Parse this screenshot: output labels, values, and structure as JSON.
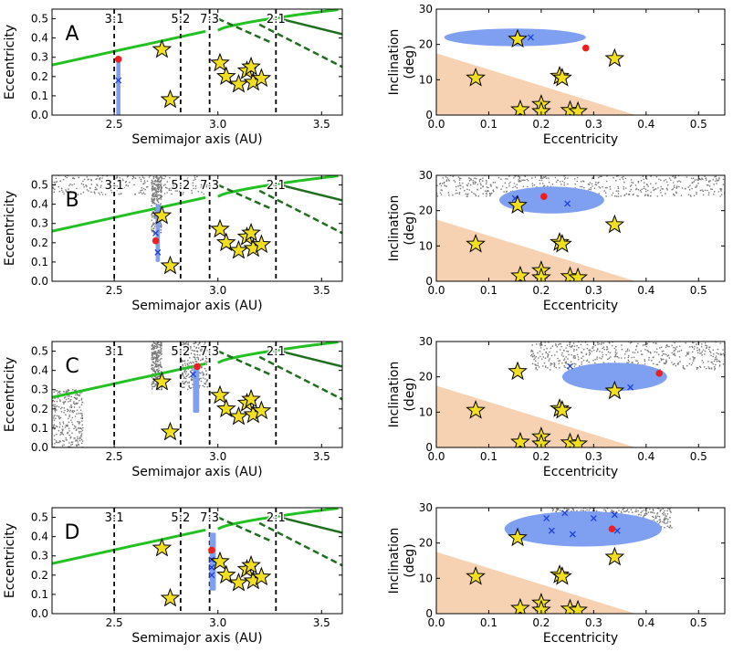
{
  "colors": {
    "green": "#22c020",
    "dark_green": "#1e6e1e",
    "blue_cloud": "#7f9ff0",
    "blue_x": "#1f3fe0",
    "red": "#ee1f1f",
    "gray": "#777777",
    "peach": "#f6d2b2",
    "star_fill": "#f2df1f",
    "star_edge": "#000000"
  },
  "chart_data": [
    {
      "type": "scatter",
      "panel": "A",
      "xlabel": "Semimajor axis (AU)",
      "ylabel": "Eccentricity",
      "xlim": [
        2.2,
        3.6
      ],
      "ylim": [
        0.0,
        0.55
      ],
      "xticks": [
        "2.5",
        "3.0",
        "3.5"
      ],
      "yticks": [
        "0.0",
        "0.1",
        "0.2",
        "0.3",
        "0.4",
        "0.5"
      ],
      "resonances": [
        {
          "label": "3:1",
          "a": 2.5
        },
        {
          "label": "5:2",
          "a": 2.82
        },
        {
          "label": "7:3",
          "a": 2.96
        },
        {
          "label": "2:1",
          "a": 3.28
        }
      ],
      "stars": [
        [
          2.73,
          0.34
        ],
        [
          2.77,
          0.08
        ],
        [
          3.01,
          0.27
        ],
        [
          3.04,
          0.2
        ],
        [
          3.1,
          0.16
        ],
        [
          3.14,
          0.23
        ],
        [
          3.16,
          0.25
        ],
        [
          3.17,
          0.17
        ],
        [
          3.21,
          0.19
        ]
      ],
      "blue_streak": {
        "a": [
          2.51,
          2.53
        ],
        "e": [
          0.0,
          0.29
        ]
      },
      "gray_clouds": [],
      "red_points": [
        [
          2.52,
          0.29
        ]
      ],
      "x_markers": [
        [
          2.52,
          0.18
        ]
      ]
    },
    {
      "type": "scatter",
      "panel": "",
      "xlabel": "Eccentricity",
      "ylabel": "Inclination (deg)",
      "xlim": [
        0.0,
        0.55
      ],
      "ylim": [
        0,
        30
      ],
      "xticks": [
        "0.0",
        "0.1",
        "0.2",
        "0.3",
        "0.4",
        "0.5"
      ],
      "yticks": [
        "0",
        "10",
        "20",
        "30"
      ],
      "stars": [
        [
          0.075,
          10.5
        ],
        [
          0.155,
          21.5
        ],
        [
          0.16,
          1.5
        ],
        [
          0.2,
          3.0
        ],
        [
          0.2,
          1.0
        ],
        [
          0.235,
          11.0
        ],
        [
          0.24,
          10.5
        ],
        [
          0.255,
          1.3
        ],
        [
          0.27,
          1.0
        ],
        [
          0.34,
          16.0
        ]
      ],
      "blue_cloud": {
        "cx": 0.15,
        "cy": 22.0,
        "rx": 0.135,
        "ry": 2.5
      },
      "gray_clouds": [],
      "red_points": [
        [
          0.285,
          19.0
        ]
      ],
      "x_markers": [
        [
          0.155,
          22.0
        ],
        [
          0.18,
          22.0
        ]
      ]
    },
    {
      "type": "scatter",
      "panel": "B",
      "xlabel": "Semimajor axis (AU)",
      "ylabel": "Eccentricity",
      "xlim": [
        2.2,
        3.6
      ],
      "ylim": [
        0.0,
        0.55
      ],
      "xticks": [
        "2.5",
        "3.0",
        "3.5"
      ],
      "yticks": [
        "0.0",
        "0.1",
        "0.2",
        "0.3",
        "0.4",
        "0.5"
      ],
      "resonances": [
        {
          "label": "3:1",
          "a": 2.5
        },
        {
          "label": "5:2",
          "a": 2.82
        },
        {
          "label": "7:3",
          "a": 2.96
        },
        {
          "label": "2:1",
          "a": 3.28
        }
      ],
      "stars": [
        [
          2.73,
          0.34
        ],
        [
          2.77,
          0.08
        ],
        [
          3.01,
          0.27
        ],
        [
          3.04,
          0.2
        ],
        [
          3.1,
          0.16
        ],
        [
          3.14,
          0.23
        ],
        [
          3.16,
          0.25
        ],
        [
          3.17,
          0.17
        ],
        [
          3.21,
          0.19
        ]
      ],
      "blue_streak": {
        "a": [
          2.7,
          2.72
        ],
        "e": [
          0.1,
          0.4
        ]
      },
      "gray_clouds": [
        {
          "a": [
            2.2,
            2.95
          ],
          "e": [
            0.45,
            0.55
          ]
        },
        {
          "a": [
            2.68,
            2.73
          ],
          "e": [
            0.25,
            0.55
          ]
        }
      ],
      "red_points": [
        [
          2.7,
          0.21
        ]
      ],
      "x_markers": [
        [
          2.7,
          0.25
        ],
        [
          2.71,
          0.15
        ]
      ]
    },
    {
      "type": "scatter",
      "panel": "",
      "xlabel": "Eccentricity",
      "ylabel": "Inclination (deg)",
      "xlim": [
        0.0,
        0.55
      ],
      "ylim": [
        0,
        30
      ],
      "xticks": [
        "0.0",
        "0.1",
        "0.2",
        "0.3",
        "0.4",
        "0.5"
      ],
      "yticks": [
        "0",
        "10",
        "20",
        "30"
      ],
      "stars": [
        [
          0.075,
          10.5
        ],
        [
          0.155,
          21.5
        ],
        [
          0.16,
          1.5
        ],
        [
          0.2,
          3.0
        ],
        [
          0.2,
          1.0
        ],
        [
          0.235,
          11.0
        ],
        [
          0.24,
          10.5
        ],
        [
          0.255,
          1.3
        ],
        [
          0.27,
          1.0
        ],
        [
          0.34,
          16.0
        ]
      ],
      "blue_cloud": {
        "cx": 0.22,
        "cy": 23.0,
        "rx": 0.1,
        "ry": 3.8
      },
      "gray_clouds": [
        {
          "x": [
            0.0,
            0.55
          ],
          "y": [
            24,
            30
          ]
        }
      ],
      "red_points": [
        [
          0.205,
          24.0
        ]
      ],
      "x_markers": [
        [
          0.15,
          23.5
        ],
        [
          0.25,
          22.0
        ]
      ]
    },
    {
      "type": "scatter",
      "panel": "C",
      "xlabel": "Semimajor axis (AU)",
      "ylabel": "Eccentricity",
      "xlim": [
        2.2,
        3.6
      ],
      "ylim": [
        0.0,
        0.55
      ],
      "xticks": [
        "2.5",
        "3.0",
        "3.5"
      ],
      "yticks": [
        "0.0",
        "0.1",
        "0.2",
        "0.3",
        "0.4",
        "0.5"
      ],
      "resonances": [
        {
          "label": "3:1",
          "a": 2.5
        },
        {
          "label": "5:2",
          "a": 2.82
        },
        {
          "label": "7:3",
          "a": 2.96
        },
        {
          "label": "2:1",
          "a": 3.28
        }
      ],
      "stars": [
        [
          2.73,
          0.34
        ],
        [
          2.77,
          0.08
        ],
        [
          3.01,
          0.27
        ],
        [
          3.04,
          0.2
        ],
        [
          3.1,
          0.16
        ],
        [
          3.14,
          0.23
        ],
        [
          3.16,
          0.25
        ],
        [
          3.17,
          0.17
        ],
        [
          3.21,
          0.19
        ]
      ],
      "blue_streak": {
        "a": [
          2.88,
          2.91
        ],
        "e": [
          0.18,
          0.43
        ]
      },
      "gray_clouds": [
        {
          "a": [
            2.2,
            2.35
          ],
          "e": [
            0.0,
            0.3
          ]
        },
        {
          "a": [
            2.68,
            2.73
          ],
          "e": [
            0.3,
            0.55
          ]
        },
        {
          "a": [
            2.82,
            2.95
          ],
          "e": [
            0.3,
            0.55
          ]
        }
      ],
      "red_points": [
        [
          2.9,
          0.42
        ]
      ],
      "x_markers": [
        [
          2.88,
          0.38
        ]
      ]
    },
    {
      "type": "scatter",
      "panel": "",
      "xlabel": "Eccentricity",
      "ylabel": "Inclination (deg)",
      "xlim": [
        0.0,
        0.55
      ],
      "ylim": [
        0,
        30
      ],
      "xticks": [
        "0.0",
        "0.1",
        "0.2",
        "0.3",
        "0.4",
        "0.5"
      ],
      "yticks": [
        "0",
        "10",
        "20",
        "30"
      ],
      "stars": [
        [
          0.075,
          10.5
        ],
        [
          0.155,
          21.5
        ],
        [
          0.16,
          1.5
        ],
        [
          0.2,
          3.0
        ],
        [
          0.2,
          1.0
        ],
        [
          0.235,
          11.0
        ],
        [
          0.24,
          10.5
        ],
        [
          0.255,
          1.3
        ],
        [
          0.27,
          1.0
        ],
        [
          0.34,
          16.0
        ]
      ],
      "blue_cloud": {
        "cx": 0.34,
        "cy": 20.0,
        "rx": 0.1,
        "ry": 4.0
      },
      "gray_clouds": [
        {
          "x": [
            0.18,
            0.55
          ],
          "y": [
            22,
            30
          ]
        }
      ],
      "red_points": [
        [
          0.425,
          21.0
        ]
      ],
      "x_markers": [
        [
          0.255,
          23.0
        ],
        [
          0.37,
          17.0
        ]
      ]
    },
    {
      "type": "scatter",
      "panel": "D",
      "xlabel": "Semimajor axis (AU)",
      "ylabel": "Eccentricity",
      "xlim": [
        2.2,
        3.6
      ],
      "ylim": [
        0.0,
        0.55
      ],
      "xticks": [
        "2.5",
        "3.0",
        "3.5"
      ],
      "yticks": [
        "0.0",
        "0.1",
        "0.2",
        "0.3",
        "0.4",
        "0.5"
      ],
      "resonances": [
        {
          "label": "3:1",
          "a": 2.5
        },
        {
          "label": "5:2",
          "a": 2.82
        },
        {
          "label": "7:3",
          "a": 2.96
        },
        {
          "label": "2:1",
          "a": 3.28
        }
      ],
      "stars": [
        [
          2.73,
          0.34
        ],
        [
          2.77,
          0.08
        ],
        [
          3.01,
          0.27
        ],
        [
          3.04,
          0.2
        ],
        [
          3.1,
          0.16
        ],
        [
          3.14,
          0.23
        ],
        [
          3.16,
          0.25
        ],
        [
          3.17,
          0.17
        ],
        [
          3.21,
          0.19
        ]
      ],
      "blue_streak": {
        "a": [
          2.96,
          2.99
        ],
        "e": [
          0.12,
          0.42
        ]
      },
      "gray_clouds": [],
      "red_points": [
        [
          2.97,
          0.33
        ]
      ],
      "x_markers": [
        [
          2.97,
          0.28
        ],
        [
          2.97,
          0.24
        ],
        [
          2.97,
          0.2
        ]
      ]
    },
    {
      "type": "scatter",
      "panel": "",
      "xlabel": "Eccentricity",
      "ylabel": "Inclination (deg)",
      "xlim": [
        0.0,
        0.55
      ],
      "ylim": [
        0,
        30
      ],
      "xticks": [
        "0.0",
        "0.1",
        "0.2",
        "0.3",
        "0.4",
        "0.5"
      ],
      "yticks": [
        "0",
        "10",
        "20",
        "30"
      ],
      "stars": [
        [
          0.075,
          10.5
        ],
        [
          0.155,
          21.5
        ],
        [
          0.16,
          1.5
        ],
        [
          0.2,
          3.0
        ],
        [
          0.2,
          1.0
        ],
        [
          0.235,
          11.0
        ],
        [
          0.24,
          10.5
        ],
        [
          0.255,
          1.3
        ],
        [
          0.27,
          1.0
        ],
        [
          0.34,
          16.0
        ]
      ],
      "blue_cloud": {
        "cx": 0.28,
        "cy": 24.0,
        "rx": 0.15,
        "ry": 5.0
      },
      "gray_clouds": [
        {
          "x": [
            0.22,
            0.45
          ],
          "y": [
            24,
            31
          ]
        }
      ],
      "red_points": [
        [
          0.335,
          24.0
        ]
      ],
      "x_markers": [
        [
          0.21,
          27.0
        ],
        [
          0.245,
          28.5
        ],
        [
          0.3,
          27.0
        ],
        [
          0.34,
          28.0
        ],
        [
          0.22,
          23.5
        ],
        [
          0.26,
          22.5
        ],
        [
          0.345,
          23.5
        ]
      ]
    }
  ]
}
